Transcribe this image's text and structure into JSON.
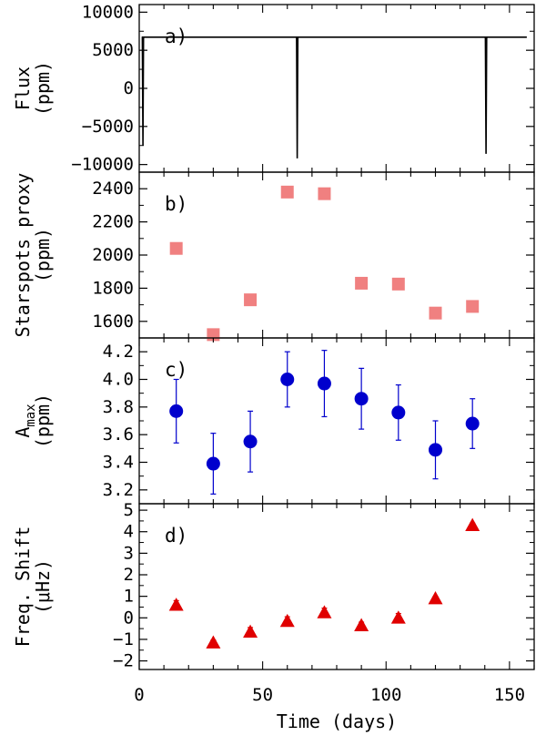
{
  "figure": {
    "xlabel": "Time (days)",
    "x_ticks": [
      "0",
      "50",
      "100",
      "150"
    ],
    "xlim": [
      0,
      160
    ]
  },
  "chart_data": [
    {
      "type": "line",
      "panel": "a)",
      "ylabel_lines": [
        "Flux",
        "(ppm)"
      ],
      "ylim": [
        -11000,
        11000
      ],
      "y_ticks": [
        "10000",
        "5000",
        "0",
        "−5000",
        "−10000"
      ],
      "y_tick_values": [
        10000,
        5000,
        0,
        -5000,
        -10000
      ],
      "color": "#000000",
      "x_start": 1,
      "x_end": 157,
      "sample_step": 0.25,
      "noise_amplitude": 2600,
      "dips": [
        {
          "x": 1.5,
          "y": -7500
        },
        {
          "x": 64,
          "y": -9200
        },
        {
          "x": 140.5,
          "y": -8600
        }
      ]
    },
    {
      "type": "scatter",
      "panel": "b)",
      "ylabel_lines": [
        "Starspots proxy",
        "(ppm)"
      ],
      "ylim": [
        1500,
        2500
      ],
      "y_ticks": [
        "2400",
        "2200",
        "2000",
        "1800",
        "1600"
      ],
      "y_tick_values": [
        2400,
        2200,
        2000,
        1800,
        1600
      ],
      "marker": "square",
      "color": "#f08080",
      "x": [
        15,
        30,
        45,
        60,
        75,
        90,
        105,
        120,
        135
      ],
      "y": [
        2040,
        1520,
        1730,
        2380,
        2370,
        1830,
        1825,
        1650,
        1690
      ]
    },
    {
      "type": "scatter",
      "panel": "c)",
      "ylabel_main": "A",
      "ylabel_sub": "max",
      "ylabel_unit": "(ppm)",
      "ylim": [
        3.1,
        4.3
      ],
      "y_ticks": [
        "4.2",
        "4.0",
        "3.8",
        "3.6",
        "3.4",
        "3.2"
      ],
      "y_tick_values": [
        4.2,
        4.0,
        3.8,
        3.6,
        3.4,
        3.2
      ],
      "marker": "circle",
      "color": "#0000cd",
      "x": [
        15,
        30,
        45,
        60,
        75,
        90,
        105,
        120,
        135
      ],
      "y": [
        3.77,
        3.39,
        3.55,
        4.0,
        3.97,
        3.86,
        3.76,
        3.49,
        3.68
      ],
      "err": [
        0.23,
        0.22,
        0.22,
        0.2,
        0.24,
        0.22,
        0.2,
        0.21,
        0.18
      ]
    },
    {
      "type": "scatter",
      "panel": "d)",
      "ylabel_lines": [
        "Freq. Shift",
        "(μHz)"
      ],
      "ylim": [
        -2.4,
        5.3
      ],
      "y_ticks": [
        "5",
        "4",
        "3",
        "2",
        "1",
        "0",
        "−1",
        "−2"
      ],
      "y_tick_values": [
        5,
        4,
        3,
        2,
        1,
        0,
        -1,
        -2
      ],
      "marker": "triangle",
      "color": "#e00000",
      "x": [
        15,
        30,
        45,
        60,
        75,
        90,
        105,
        120,
        135
      ],
      "y": [
        0.6,
        -1.15,
        -0.65,
        -0.15,
        0.25,
        -0.35,
        0.0,
        0.9,
        4.3
      ],
      "err": [
        0.2,
        0.12,
        0.2,
        0.2,
        0.2,
        0.15,
        0.2,
        0.1,
        0.1
      ]
    }
  ]
}
